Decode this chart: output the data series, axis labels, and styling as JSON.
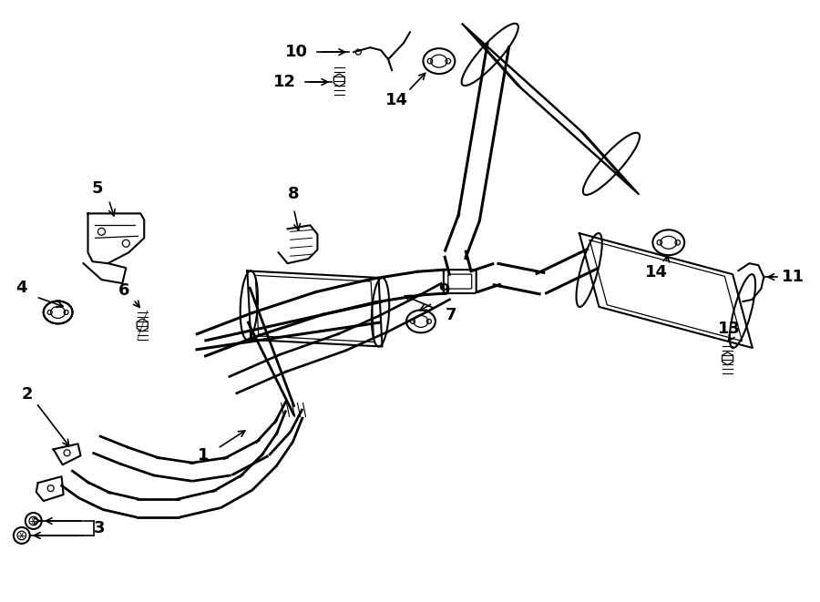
{
  "bg_color": "#ffffff",
  "line_color": "#000000",
  "fig_width": 9.0,
  "fig_height": 6.61,
  "dpi": 100,
  "lw_pipe": 2.2,
  "lw_main": 1.5,
  "lw_thin": 0.9,
  "label_fontsize": 13
}
